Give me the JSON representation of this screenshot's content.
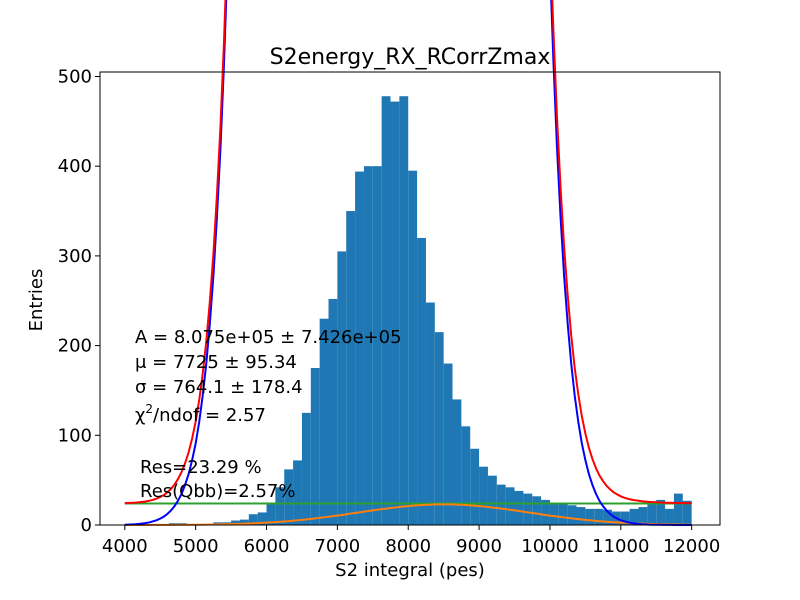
{
  "chart_data": {
    "type": "bar",
    "title": "S2energy_RX_RCorrZmax",
    "xlabel": "S2 integral (pes)",
    "ylabel": "Entries",
    "xlim": [
      3650,
      12400
    ],
    "ylim": [
      0,
      505
    ],
    "xticks": [
      "4000",
      "5000",
      "6000",
      "7000",
      "8000",
      "9000",
      "10000",
      "11000",
      "12000"
    ],
    "yticks": [
      "0",
      "100",
      "200",
      "300",
      "400",
      "500"
    ],
    "bins": {
      "start": 4000,
      "width": 125,
      "counts": [
        0,
        0,
        0,
        0,
        0,
        2,
        2,
        1,
        0,
        0,
        3,
        3,
        5,
        6,
        12,
        14,
        25,
        42,
        62,
        72,
        125,
        175,
        230,
        252,
        305,
        350,
        394,
        400,
        400,
        478,
        472,
        478,
        395,
        320,
        248,
        215,
        180,
        140,
        110,
        85,
        65,
        55,
        45,
        42,
        38,
        35,
        32,
        28,
        25,
        25,
        22,
        20,
        18,
        18,
        17,
        15,
        15,
        18,
        20,
        25,
        28,
        18,
        35,
        27
      ]
    },
    "series": [
      {
        "name": "",
        "role": "total-fit",
        "color": "#ff0000"
      },
      {
        "name": "",
        "role": "gaussian-fit",
        "color": "#0000ff"
      },
      {
        "name": "",
        "role": "background-gaussian",
        "color": "#ff7f0e"
      },
      {
        "name": "",
        "role": "constant-background",
        "color": "#2ca02c"
      }
    ],
    "fit": {
      "A": 807500,
      "mu": 7725,
      "sigma": 764.1,
      "chi2_ndof": 2.57
    },
    "annotations": {
      "line_A": "A = 8.075e+05 ± 7.426e+05",
      "line_mu": "μ = 7725 ± 95.34",
      "line_sigma": "σ = 764.1 ± 178.4",
      "line_chi_pre": "χ",
      "line_chi_sup": "2",
      "line_chi_post": "/ndof = 2.57",
      "res": "Res=23.29 %",
      "res_qbb": "Res(Qbb)=2.57%"
    },
    "colors": {
      "bars": "#1f77b4"
    }
  }
}
